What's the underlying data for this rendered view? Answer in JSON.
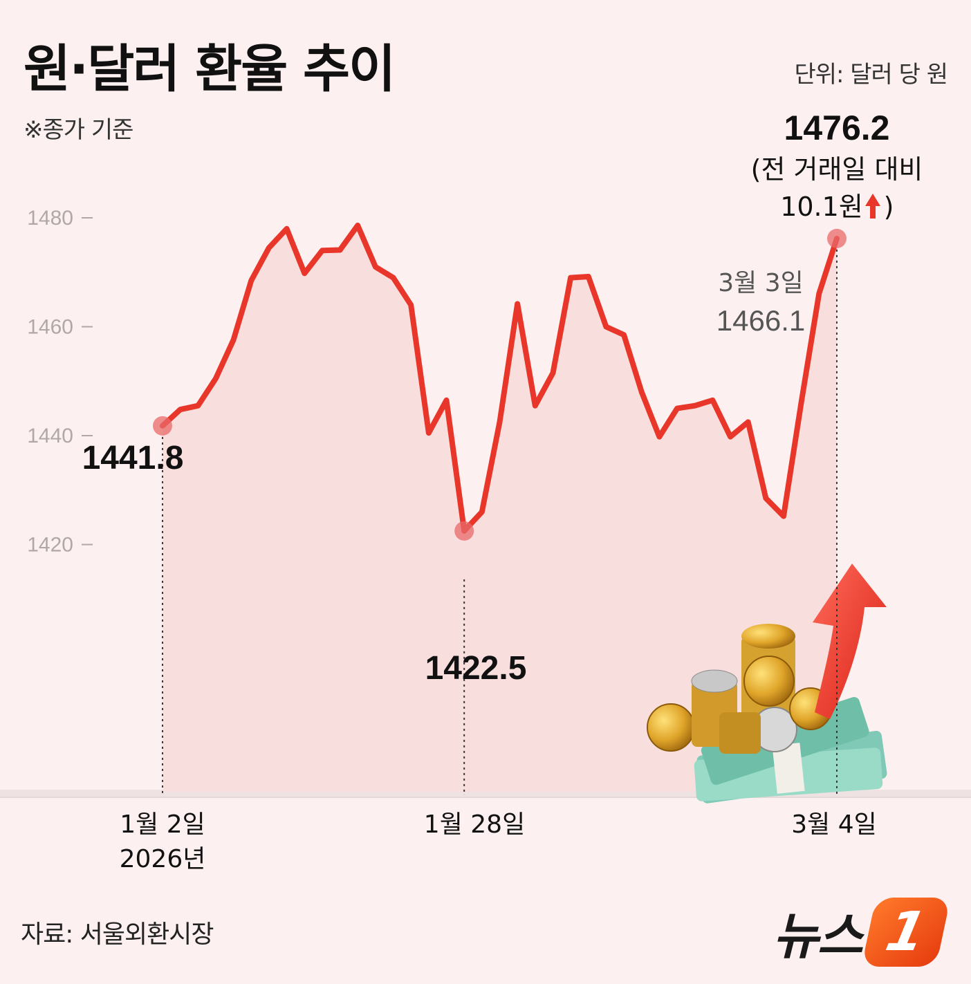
{
  "header": {
    "title": "원·달러 환율 추이",
    "unit": "단위: 달러 당 원",
    "note": "※종가 기준"
  },
  "footer": {
    "source": "자료: 서울외환시장",
    "brand_text": "뉴스",
    "brand_mark": "1"
  },
  "colors": {
    "line": "#e8372a",
    "fill": "#f9dede",
    "marker": "#e86a6a",
    "background": "#fdf0f0",
    "axis_text": "#b0a8a8"
  },
  "chart_data": {
    "type": "line",
    "title": "원·달러 환율 추이",
    "ylim": [
      1400,
      1480
    ],
    "yticks": [
      1480,
      1460,
      1440,
      1420
    ],
    "ytick_labels": [
      "1480",
      "1460",
      "1440",
      "1420"
    ],
    "grid": false,
    "x_labels": [
      {
        "index": 0,
        "lines": [
          "1월 2일",
          "2026년"
        ]
      },
      {
        "index": 18,
        "lines": [
          "1월 28일"
        ]
      },
      {
        "index": 39,
        "lines": [
          "3월 4일"
        ]
      }
    ],
    "series": [
      {
        "values": [
          1441.8,
          1444.8,
          1445.5,
          1450.5,
          1457.6,
          1468.5,
          1474.5,
          1478.0,
          1469.8,
          1474.0,
          1474.1,
          1478.6,
          1471.0,
          1469.0,
          1464.0,
          1440.5,
          1446.5,
          1422.5,
          1426.0,
          1442.5,
          1464.2,
          1445.5,
          1451.5,
          1469.0,
          1469.2,
          1460.0,
          1458.5,
          1448.0,
          1439.8,
          1445.0,
          1445.5,
          1446.5,
          1439.8,
          1442.5,
          1428.5,
          1425.2,
          1446.2,
          1466.1,
          1476.2
        ]
      }
    ],
    "annotations": [
      {
        "index": 0,
        "label": "1441.8"
      },
      {
        "index": 17,
        "label": "1422.5"
      },
      {
        "index": 37,
        "label_lines": [
          "3월 3일",
          "1466.1"
        ]
      },
      {
        "index": 38,
        "label_lines": [
          "1476.2",
          "(전 거래일 대비",
          "10.1원",
          ")"
        ],
        "arrow": "up"
      }
    ]
  }
}
